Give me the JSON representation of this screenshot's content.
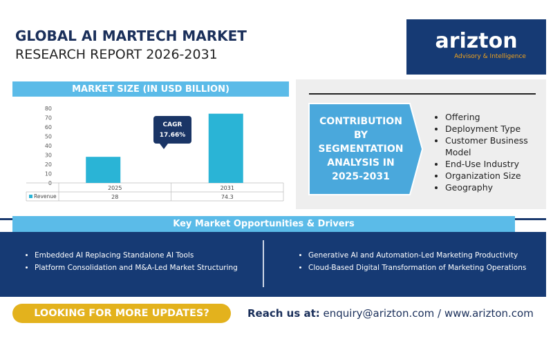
{
  "header": {
    "title": "GLOBAL AI MARTECH MARKET",
    "subtitle": "RESEARCH REPORT 2026-2031"
  },
  "logo": {
    "name": "arizton",
    "tagline": "Advisory & Intelligence"
  },
  "market_size": {
    "heading": "MARKET SIZE (IN USD BILLION)"
  },
  "chart_data": {
    "type": "bar",
    "categories": [
      "2025",
      "2031"
    ],
    "series": [
      {
        "name": "Revenue",
        "color": "#2ab4d6",
        "values": [
          28,
          74.3
        ]
      }
    ],
    "ylim": [
      0,
      80
    ],
    "yticks": [
      0,
      10,
      20,
      30,
      40,
      50,
      60,
      70,
      80
    ],
    "grid": false,
    "annotation": {
      "label": "CAGR",
      "value": "17.66%"
    }
  },
  "segmentation": {
    "lines": [
      "CONTRIBUTION",
      "BY",
      "SEGMENTATION",
      "ANALYSIS IN",
      "2025-2031"
    ],
    "items": [
      "Offering",
      "Deployment Type",
      "Customer Business Model",
      "End-Use Industry",
      "Organization Size",
      "Geography"
    ]
  },
  "opportunities": {
    "heading": "Key Market Opportunities & Drivers",
    "left": [
      "Embedded AI Replacing Standalone AI Tools",
      "Platform Consolidation and M&A-Led Market Structuring"
    ],
    "right": [
      "Generative AI and Automation-Led Marketing Productivity",
      "Cloud-Based Digital Transformation of Marketing Operations"
    ]
  },
  "footer": {
    "cta": "LOOKING FOR MORE UPDATES?",
    "reach_label": "Reach us at:",
    "contact": "enquiry@arizton.com / www.arizton.com"
  }
}
